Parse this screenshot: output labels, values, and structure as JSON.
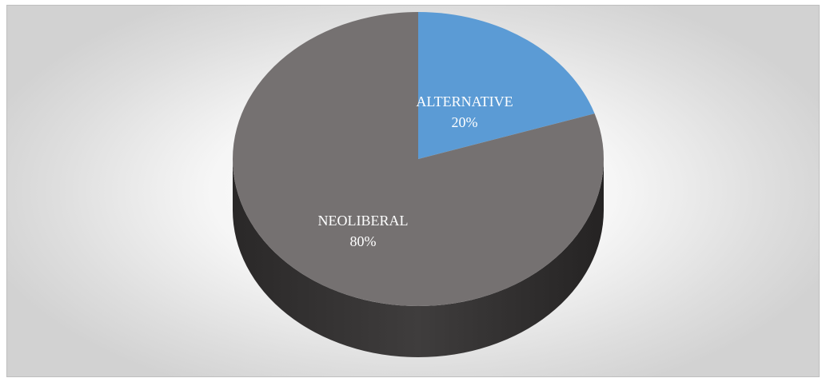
{
  "chart_data": {
    "type": "pie",
    "style": "3d",
    "title": "",
    "slices": [
      {
        "label": "ALTERNATIVE",
        "value": 20,
        "display": "20%",
        "color": "#5b9bd5"
      },
      {
        "label": "NEOLIBERAL",
        "value": 80,
        "display": "80%",
        "color": "#757171"
      }
    ],
    "side_color": "#3a3838"
  }
}
